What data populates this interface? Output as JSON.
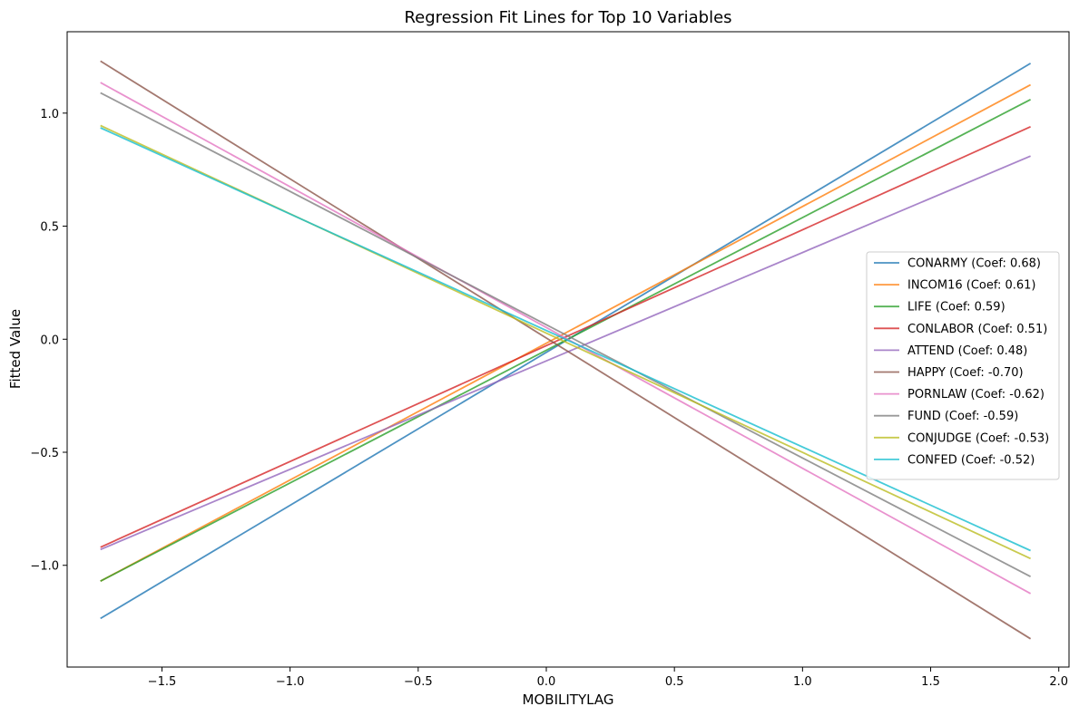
{
  "chart_data": {
    "type": "line",
    "title": "Regression Fit Lines for Top 10 Variables",
    "xlabel": "MOBILITYLAG",
    "ylabel": "Fitted Value",
    "xlim": [
      -1.87,
      2.04
    ],
    "ylim": [
      -1.45,
      1.36
    ],
    "xticks": [
      -1.5,
      -1.0,
      -0.5,
      0.0,
      0.5,
      1.0,
      1.5,
      2.0
    ],
    "xtick_labels": [
      "−1.5",
      "−1.0",
      "−0.5",
      "0.0",
      "0.5",
      "1.0",
      "1.5",
      "2.0"
    ],
    "yticks": [
      -1.0,
      -0.5,
      0.0,
      0.5,
      1.0
    ],
    "ytick_labels": [
      "−1.0",
      "−0.5",
      "0.0",
      "0.5",
      "1.0"
    ],
    "grid": false,
    "legend_position": "center-right",
    "series": [
      {
        "name": "CONARMY (Coef: 0.68)",
        "color": "#1f77b4",
        "x": [
          -1.74,
          1.89
        ],
        "y": [
          -1.235,
          1.22
        ]
      },
      {
        "name": "INCOM16 (Coef: 0.61)",
        "color": "#ff7f0e",
        "x": [
          -1.74,
          1.89
        ],
        "y": [
          -1.07,
          1.125
        ]
      },
      {
        "name": "LIFE (Coef: 0.59)",
        "color": "#2ca02c",
        "x": [
          -1.74,
          1.89
        ],
        "y": [
          -1.07,
          1.06
        ]
      },
      {
        "name": "CONLABOR (Coef: 0.51)",
        "color": "#d62728",
        "x": [
          -1.74,
          1.89
        ],
        "y": [
          -0.92,
          0.94
        ]
      },
      {
        "name": "ATTEND (Coef: 0.48)",
        "color": "#9467bd",
        "x": [
          -1.74,
          1.89
        ],
        "y": [
          -0.93,
          0.81
        ]
      },
      {
        "name": "HAPPY (Coef: -0.70)",
        "color": "#8c564b",
        "x": [
          -1.74,
          1.89
        ],
        "y": [
          1.23,
          -1.325
        ]
      },
      {
        "name": "PORNLAW (Coef: -0.62)",
        "color": "#e377c2",
        "x": [
          -1.74,
          1.89
        ],
        "y": [
          1.135,
          -1.125
        ]
      },
      {
        "name": "FUND (Coef: -0.59)",
        "color": "#7f7f7f",
        "x": [
          -1.74,
          1.89
        ],
        "y": [
          1.09,
          -1.05
        ]
      },
      {
        "name": "CONJUDGE (Coef: -0.53)",
        "color": "#bcbd22",
        "x": [
          -1.74,
          1.89
        ],
        "y": [
          0.945,
          -0.97
        ]
      },
      {
        "name": "CONFED (Coef: -0.52)",
        "color": "#17becf",
        "x": [
          -1.74,
          1.89
        ],
        "y": [
          0.935,
          -0.935
        ]
      }
    ]
  }
}
